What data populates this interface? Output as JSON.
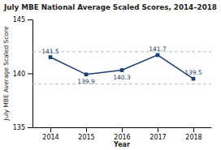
{
  "chart_data": {
    "type": "line",
    "title": "July MBE National Average Scaled Scores, 2014–2018",
    "xlabel": "Year",
    "ylabel": "July MBE Average Scaled Score",
    "x": [
      2014,
      2015,
      2016,
      2017,
      2018
    ],
    "values": [
      141.5,
      139.9,
      140.3,
      141.7,
      139.5
    ],
    "color": "#1a3f6f",
    "marker": "square",
    "data_labels": true,
    "grid": false,
    "reference_lines": [
      139.0,
      142.0
    ],
    "xlim": [
      2013.5,
      2018.5
    ],
    "xticks": [
      2014,
      2015,
      2016,
      2017,
      2018
    ],
    "ylim": [
      135,
      145
    ],
    "yticks": [
      135,
      140,
      145
    ]
  }
}
